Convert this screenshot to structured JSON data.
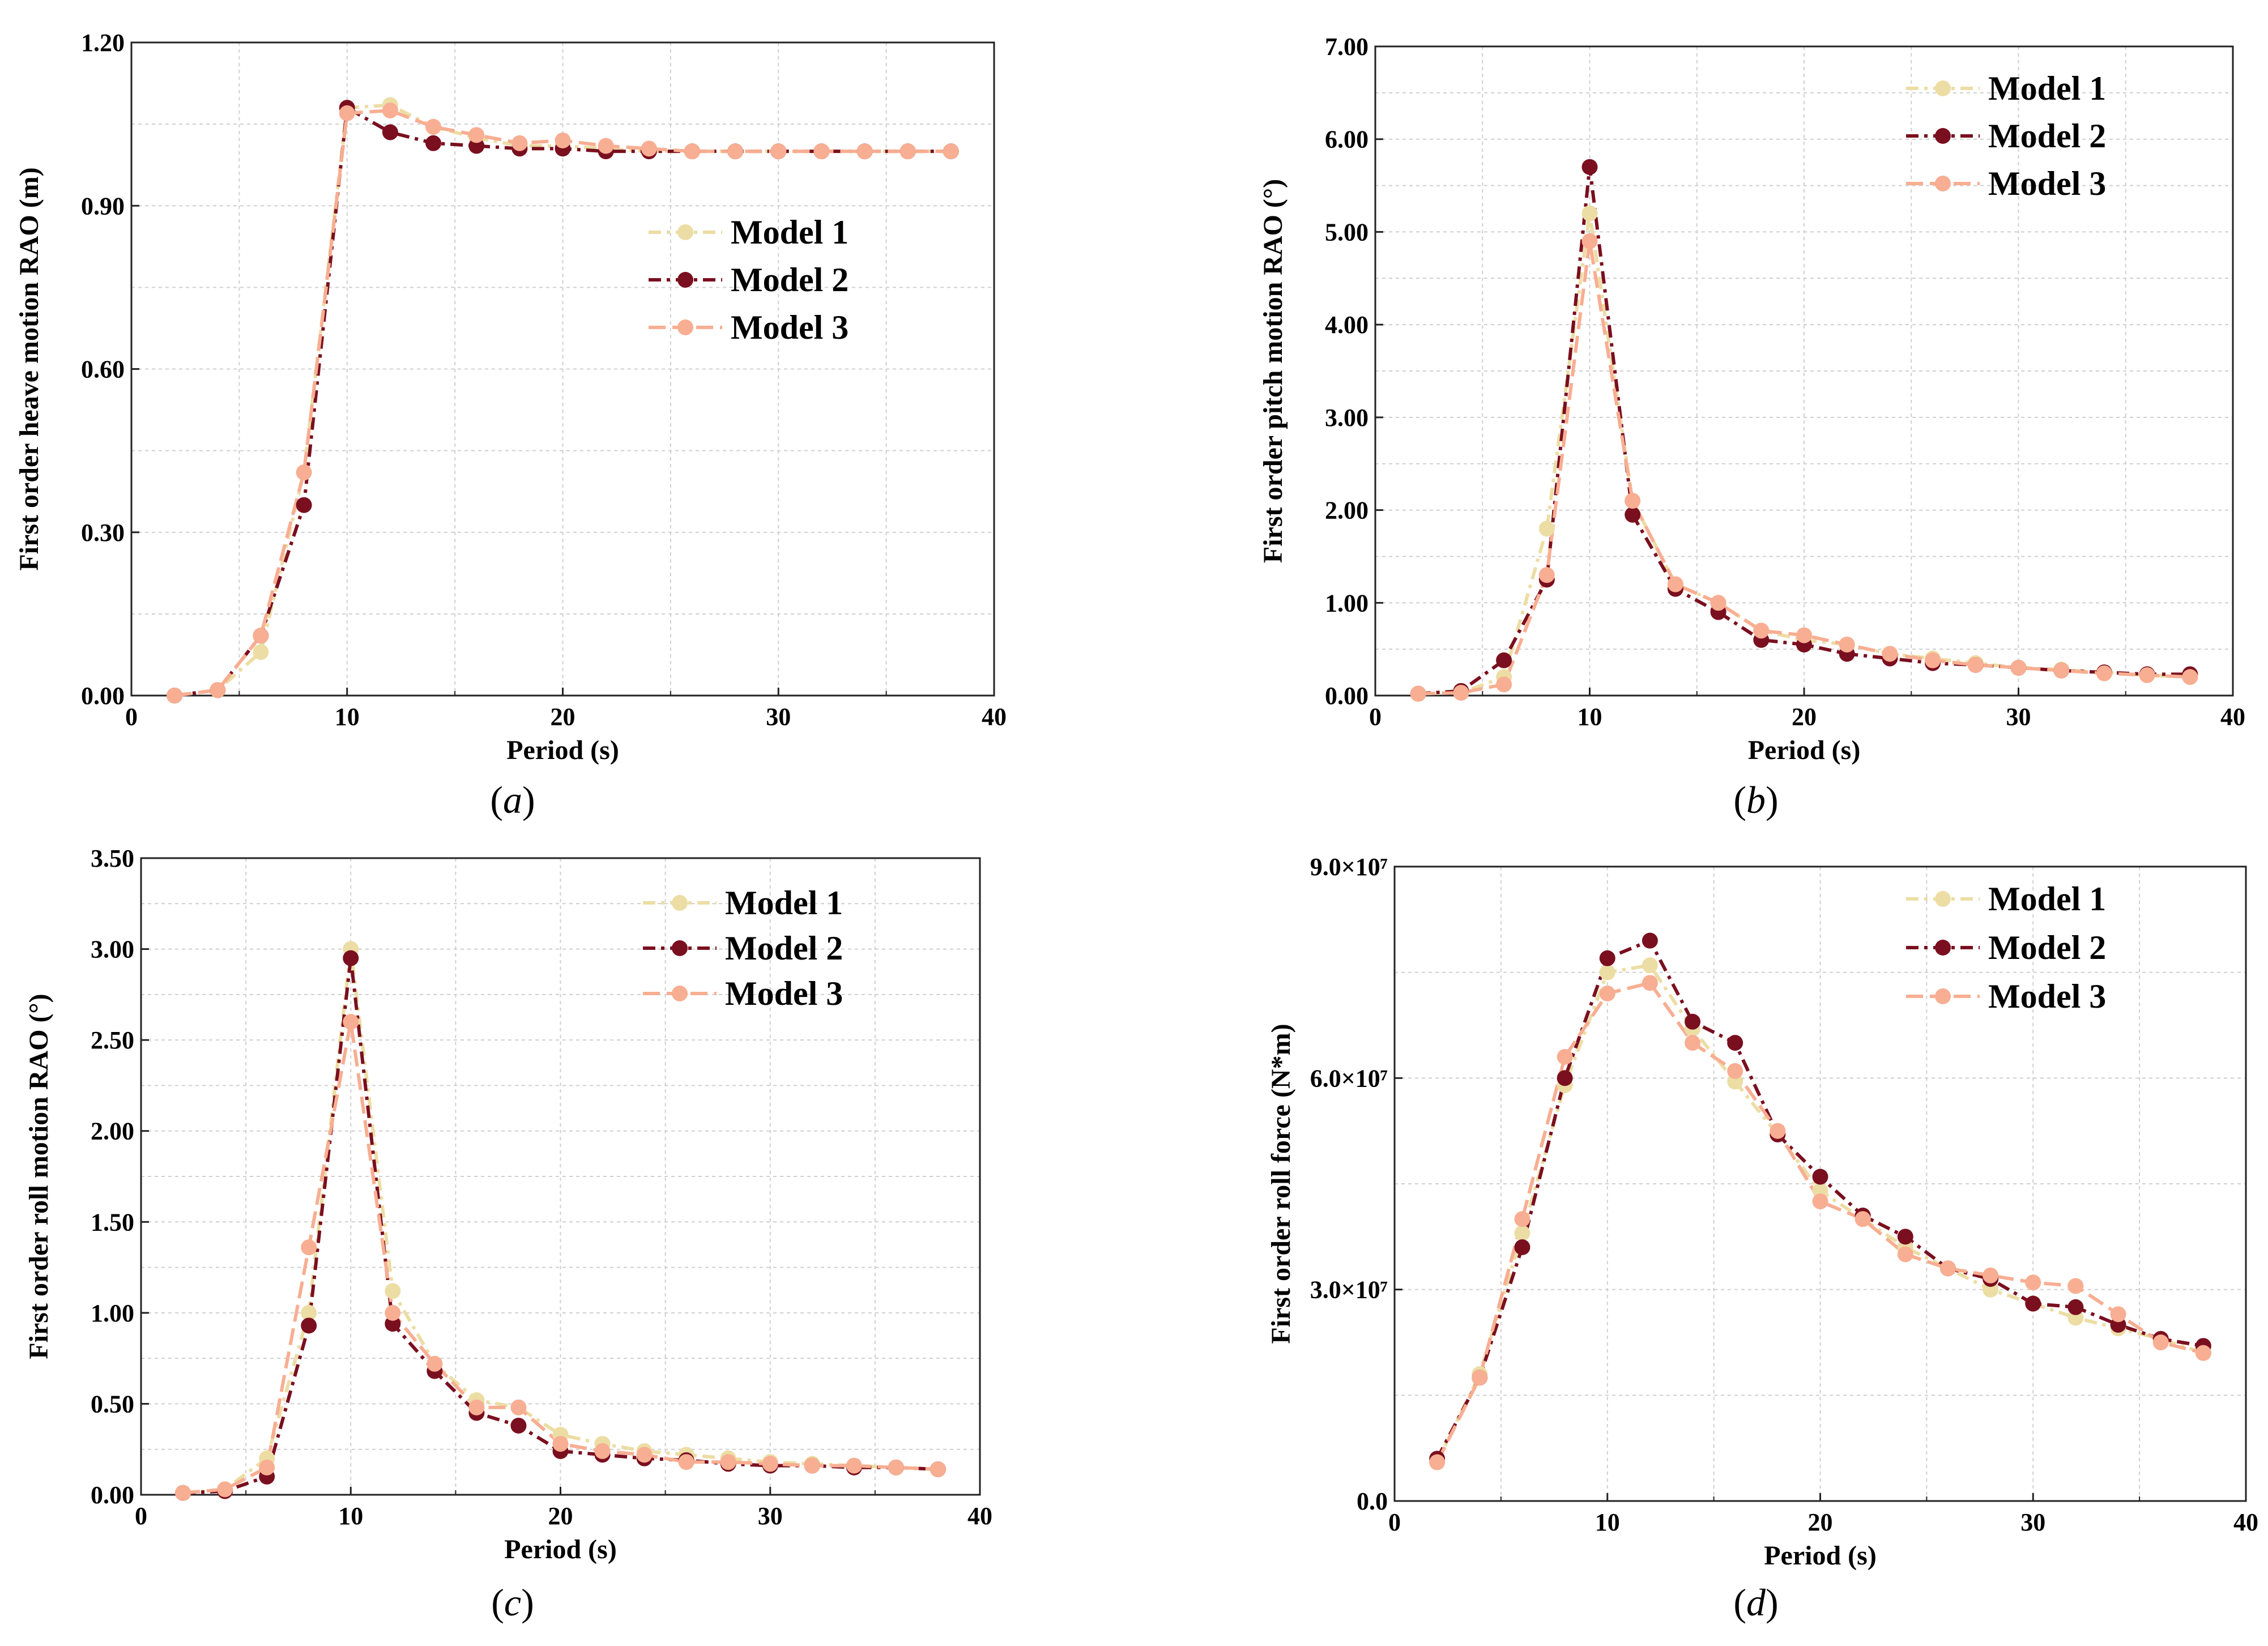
{
  "figure": {
    "colors": {
      "model1": "#ecdda4",
      "model2": "#7a0f1f",
      "model3": "#f8ae92"
    },
    "legend_labels": [
      "Model 1",
      "Model 2",
      "Model 3"
    ]
  },
  "chart_data": [
    {
      "id": "a",
      "type": "line",
      "caption_pre": "(",
      "caption_letter": "a",
      "caption_post": ")",
      "xlabel": "Period (s)",
      "ylabel": "First order heave motion RAO (m)",
      "xlim": [
        0,
        40
      ],
      "ylim": [
        0,
        1.2
      ],
      "xticks": [
        0,
        10,
        20,
        30,
        40
      ],
      "yticks": [
        0,
        0.3,
        0.6,
        0.9,
        1.2
      ],
      "ytick_labels": [
        "0.00",
        "0.30",
        "0.60",
        "0.90",
        "1.20"
      ],
      "grid": true,
      "legend_position": "right-middle",
      "x": [
        2,
        4,
        6,
        8,
        10,
        12,
        14,
        16,
        18,
        20,
        22,
        24,
        26,
        28,
        30,
        32,
        34,
        36,
        38
      ],
      "series": [
        {
          "name": "Model 1",
          "values": [
            0,
            0.01,
            0.08,
            0.41,
            1.08,
            1.085,
            1.045,
            1.025,
            1.01,
            1.01,
            1.005,
            1.0,
            1.0,
            1.0,
            1.0,
            1.0,
            1.0,
            1.0,
            1.0
          ]
        },
        {
          "name": "Model 2",
          "values": [
            0,
            0.01,
            0.11,
            0.35,
            1.08,
            1.035,
            1.015,
            1.01,
            1.005,
            1.005,
            1.0,
            1.0,
            1.0,
            1.0,
            1.0,
            1.0,
            1.0,
            1.0,
            1.0
          ]
        },
        {
          "name": "Model 3",
          "values": [
            0,
            0.01,
            0.11,
            0.41,
            1.07,
            1.075,
            1.045,
            1.03,
            1.015,
            1.02,
            1.01,
            1.005,
            1.0,
            1.0,
            1.0,
            1.0,
            1.0,
            1.0,
            1.0
          ]
        }
      ]
    },
    {
      "id": "b",
      "type": "line",
      "caption_pre": "(",
      "caption_letter": "b",
      "caption_post": ")",
      "xlabel": "Period (s)",
      "ylabel": "First order pitch motion RAO (°)",
      "xlim": [
        0,
        40
      ],
      "ylim": [
        0,
        7
      ],
      "xticks": [
        0,
        10,
        20,
        30,
        40
      ],
      "yticks": [
        0,
        1,
        2,
        3,
        4,
        5,
        6,
        7
      ],
      "ytick_labels": [
        "0.00",
        "1.00",
        "2.00",
        "3.00",
        "4.00",
        "5.00",
        "6.00",
        "7.00"
      ],
      "grid": true,
      "legend_position": "top-right",
      "x": [
        2,
        4,
        6,
        8,
        10,
        12,
        14,
        16,
        18,
        20,
        22,
        24,
        26,
        28,
        30,
        32,
        34,
        36,
        38
      ],
      "series": [
        {
          "name": "Model 1",
          "values": [
            0.02,
            0.03,
            0.2,
            1.8,
            5.2,
            2.1,
            1.2,
            1.0,
            0.7,
            0.6,
            0.55,
            0.45,
            0.4,
            0.35,
            0.3,
            0.28,
            0.25,
            0.22,
            0.2
          ]
        },
        {
          "name": "Model 2",
          "values": [
            0.02,
            0.05,
            0.38,
            1.25,
            5.7,
            1.95,
            1.15,
            0.9,
            0.6,
            0.55,
            0.45,
            0.4,
            0.35,
            0.33,
            0.3,
            0.27,
            0.25,
            0.23,
            0.23
          ]
        },
        {
          "name": "Model 3",
          "values": [
            0.02,
            0.03,
            0.12,
            1.3,
            4.9,
            2.1,
            1.2,
            1.0,
            0.7,
            0.65,
            0.55,
            0.45,
            0.38,
            0.33,
            0.3,
            0.27,
            0.24,
            0.22,
            0.2
          ]
        }
      ]
    },
    {
      "id": "c",
      "type": "line",
      "caption_pre": "(",
      "caption_letter": "c",
      "caption_post": ")",
      "xlabel": "Period (s)",
      "ylabel": "First order roll motion RAO (°)",
      "xlim": [
        0,
        40
      ],
      "ylim": [
        0,
        3.5
      ],
      "xticks": [
        0,
        10,
        20,
        30,
        40
      ],
      "yticks": [
        0,
        0.5,
        1,
        1.5,
        2,
        2.5,
        3,
        3.5
      ],
      "ytick_labels": [
        "0.00",
        "0.50",
        "1.00",
        "1.50",
        "2.00",
        "2.50",
        "3.00",
        "3.50"
      ],
      "grid": true,
      "legend_position": "top-right",
      "x": [
        2,
        4,
        6,
        8,
        10,
        12,
        14,
        16,
        18,
        20,
        22,
        24,
        26,
        28,
        30,
        32,
        34,
        36,
        38
      ],
      "series": [
        {
          "name": "Model 1",
          "values": [
            0.01,
            0.03,
            0.2,
            1.0,
            3.0,
            1.12,
            0.72,
            0.52,
            0.48,
            0.33,
            0.28,
            0.24,
            0.22,
            0.2,
            0.18,
            0.17,
            0.16,
            0.15,
            0.14
          ]
        },
        {
          "name": "Model 2",
          "values": [
            0.01,
            0.02,
            0.1,
            0.93,
            2.95,
            0.94,
            0.68,
            0.45,
            0.38,
            0.24,
            0.22,
            0.2,
            0.19,
            0.17,
            0.16,
            0.16,
            0.15,
            0.15,
            0.14
          ]
        },
        {
          "name": "Model 3",
          "values": [
            0.01,
            0.03,
            0.15,
            1.36,
            2.6,
            1.0,
            0.72,
            0.48,
            0.48,
            0.28,
            0.24,
            0.22,
            0.18,
            0.18,
            0.17,
            0.16,
            0.16,
            0.15,
            0.14
          ]
        }
      ]
    },
    {
      "id": "d",
      "type": "line",
      "caption_pre": "(",
      "caption_letter": "d",
      "caption_post": ")",
      "xlabel": "Period (s)",
      "ylabel": "First order roll force (N*m)",
      "xlim": [
        0,
        40
      ],
      "ylim": [
        0,
        90000000
      ],
      "xticks": [
        0,
        10,
        20,
        30,
        40
      ],
      "yticks": [
        0,
        30000000,
        60000000,
        90000000
      ],
      "ytick_labels": [
        "0.0",
        "3.0×10⁷",
        "6.0×10⁷",
        "9.0×10⁷"
      ],
      "grid": true,
      "legend_position": "top-right",
      "x": [
        2,
        4,
        6,
        8,
        10,
        12,
        14,
        16,
        18,
        20,
        22,
        24,
        26,
        28,
        30,
        32,
        34,
        36,
        38
      ],
      "series": [
        {
          "name": "Model 1",
          "values": [
            5500000,
            18000000,
            38000000,
            59000000,
            75000000,
            76000000,
            67000000,
            59500000,
            52000000,
            44000000,
            40000000,
            36000000,
            33000000,
            30000000,
            28000000,
            26000000,
            24500000,
            23000000,
            21000000
          ]
        },
        {
          "name": "Model 2",
          "values": [
            6000000,
            17500000,
            36000000,
            60000000,
            77000000,
            79500000,
            68000000,
            65000000,
            52000000,
            46000000,
            40500000,
            37500000,
            33000000,
            31500000,
            28000000,
            27500000,
            25000000,
            23000000,
            22000000
          ]
        },
        {
          "name": "Model 3",
          "values": [
            5500000,
            17500000,
            40000000,
            63000000,
            72000000,
            73500000,
            65000000,
            61000000,
            52500000,
            42500000,
            40000000,
            35000000,
            33000000,
            32000000,
            31000000,
            30500000,
            26500000,
            22500000,
            21000000
          ]
        }
      ]
    }
  ]
}
